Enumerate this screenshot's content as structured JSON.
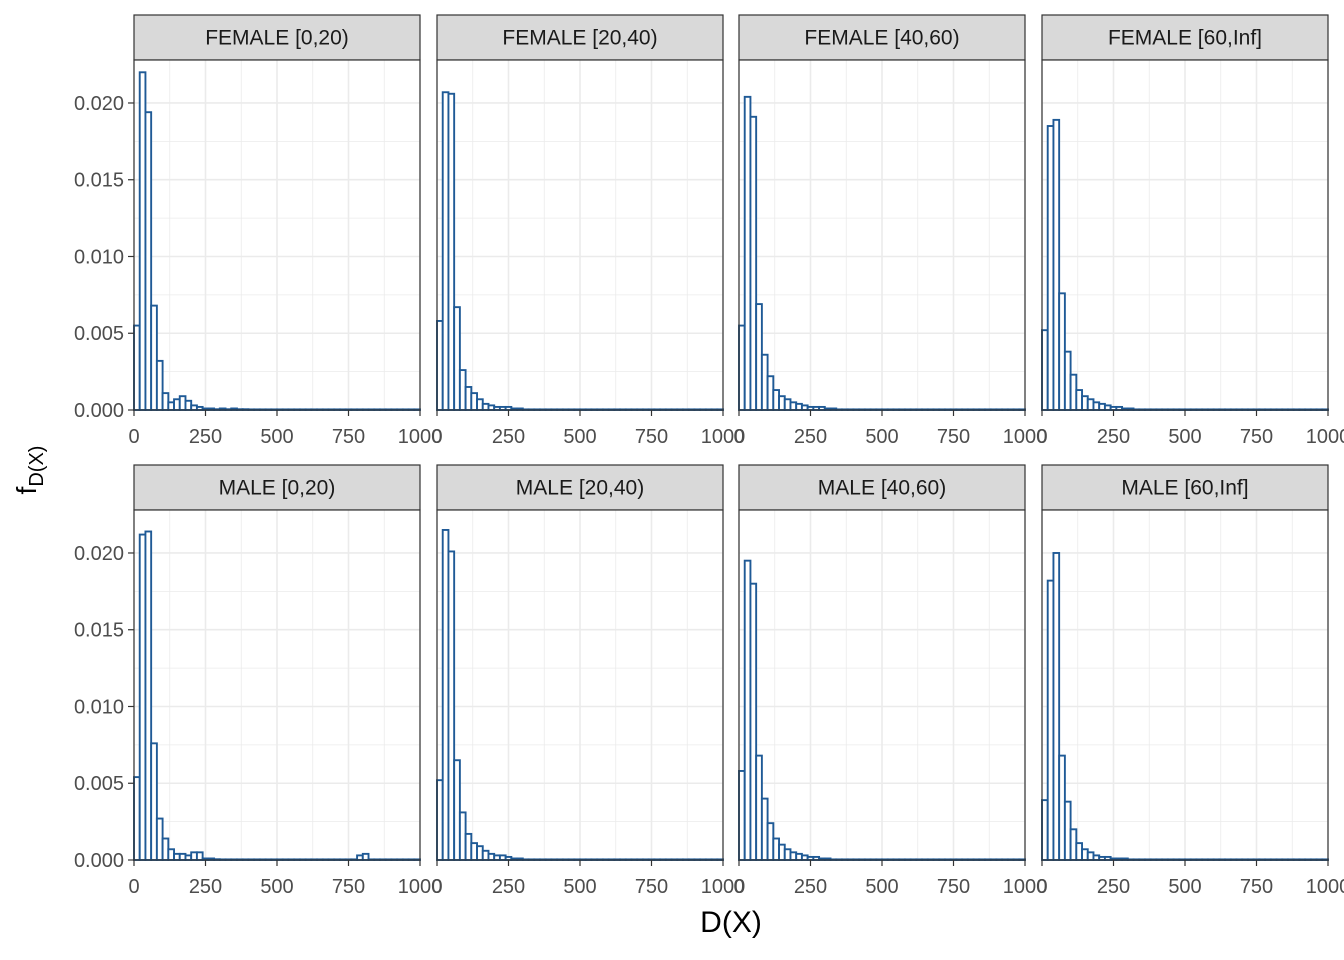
{
  "chart_data": {
    "type": "histogram-facets",
    "xlabel": "D(X)",
    "ylabel_main": "f",
    "ylabel_sub": "D(X)",
    "xlim": [
      0,
      1000
    ],
    "ylim": [
      0,
      0.0228
    ],
    "x_ticks": [
      "0",
      "250",
      "500",
      "750",
      "1000"
    ],
    "y_ticks": [
      "0.000",
      "0.005",
      "0.010",
      "0.015",
      "0.020"
    ],
    "bin_width": 20,
    "colors": {
      "bar_fill": "#ffffff",
      "bar_stroke": "#1f5a96",
      "strip_bg": "#d9d9d9",
      "grid": "#ebebeb"
    },
    "panels": [
      {
        "label": "FEMALE [0,20)",
        "values": [
          0.0055,
          0.022,
          0.0194,
          0.0068,
          0.0032,
          0.0011,
          0.0005,
          0.0007,
          0.0009,
          0.0006,
          0.0003,
          0.0002,
          0.0001,
          0.0001,
          5e-05,
          0.0001,
          5e-05,
          0.0001,
          5e-05,
          5e-05
        ]
      },
      {
        "label": "FEMALE [20,40)",
        "values": [
          0.0058,
          0.0207,
          0.0206,
          0.0067,
          0.0026,
          0.0015,
          0.0011,
          0.0007,
          0.0004,
          0.0003,
          0.0002,
          0.0002,
          0.0002,
          0.0001,
          0.0001
        ]
      },
      {
        "label": "FEMALE [40,60)",
        "values": [
          0.0055,
          0.0204,
          0.0191,
          0.0069,
          0.0036,
          0.0022,
          0.0013,
          0.0009,
          0.0007,
          0.0005,
          0.0004,
          0.0003,
          0.0002,
          0.0002,
          0.0002,
          0.0001,
          0.0001
        ]
      },
      {
        "label": "FEMALE [60,Inf]",
        "values": [
          0.0052,
          0.0185,
          0.0189,
          0.0076,
          0.0038,
          0.0023,
          0.0013,
          0.0009,
          0.0007,
          0.0005,
          0.0004,
          0.0003,
          0.0002,
          0.0002,
          0.0001,
          0.0001
        ]
      },
      {
        "label": "MALE [0,20)",
        "values": [
          0.0054,
          0.0212,
          0.0214,
          0.0076,
          0.0027,
          0.0014,
          0.0007,
          0.0004,
          0.0004,
          0.0003,
          0.0005,
          0.0005,
          0.0001,
          0.0001,
          5e-05
        ]
      },
      {
        "label": "MALE [20,40)",
        "values": [
          0.0052,
          0.0215,
          0.0201,
          0.0065,
          0.0031,
          0.0017,
          0.0011,
          0.0009,
          0.0006,
          0.0004,
          0.0003,
          0.0003,
          0.0002,
          0.0001,
          0.0001
        ]
      },
      {
        "label": "MALE [40,60)",
        "values": [
          0.0058,
          0.0195,
          0.018,
          0.0068,
          0.004,
          0.0024,
          0.0014,
          0.001,
          0.0007,
          0.0005,
          0.0004,
          0.0003,
          0.0002,
          0.0002,
          0.0001,
          0.0001
        ]
      },
      {
        "label": "MALE [60,Inf]",
        "values": [
          0.0039,
          0.0182,
          0.02,
          0.0068,
          0.0038,
          0.002,
          0.0011,
          0.0007,
          0.0005,
          0.0003,
          0.0002,
          0.0002,
          0.0001,
          0.0001,
          0.0001
        ]
      }
    ],
    "tail_bumps": [
      {
        "panel": 4,
        "x": 780,
        "value": 0.0003
      },
      {
        "panel": 4,
        "x": 800,
        "value": 0.0004
      }
    ]
  }
}
